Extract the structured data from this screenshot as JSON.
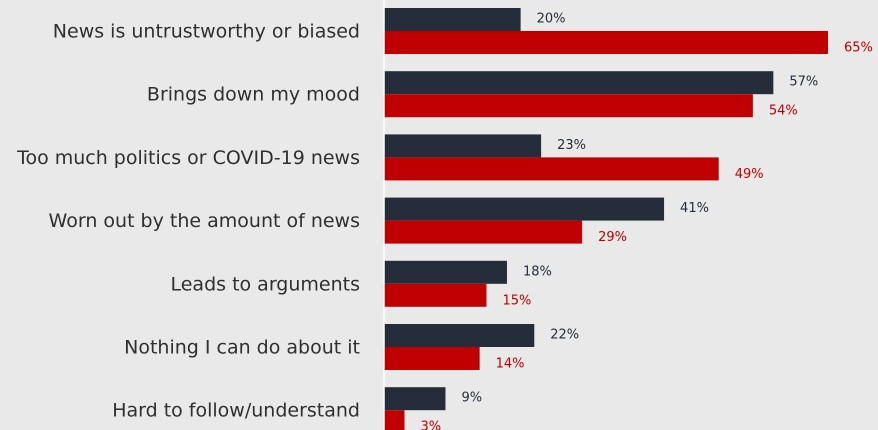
{
  "chart_data": {
    "type": "bar",
    "orientation": "horizontal",
    "categories": [
      "News is untrustworthy or biased",
      "Brings down my mood",
      "Too much politics or COVID-19 news",
      "Worn out by the amount of news",
      "Leads to arguments",
      "Nothing I can do about it",
      "Hard to follow/understand"
    ],
    "series": [
      {
        "values": [
          20,
          57,
          23,
          41,
          18,
          22,
          9
        ],
        "labels": [
          "20%",
          "57%",
          "23%",
          "41%",
          "18%",
          "22%",
          "9%"
        ],
        "color": "#262d3a",
        "label_color": "#262d3a"
      },
      {
        "values": [
          65,
          54,
          49,
          29,
          15,
          14,
          3
        ],
        "labels": [
          "65%",
          "54%",
          "49%",
          "29%",
          "15%",
          "14%",
          "3%"
        ],
        "color": "#c00000",
        "label_color": "#c00000"
      }
    ],
    "xlim": [
      0,
      65
    ],
    "grid": false,
    "legend": "none"
  },
  "colors": {
    "background": "#e9e9e9",
    "axis": "#ffffff",
    "category_text": "#2f2f2f"
  }
}
